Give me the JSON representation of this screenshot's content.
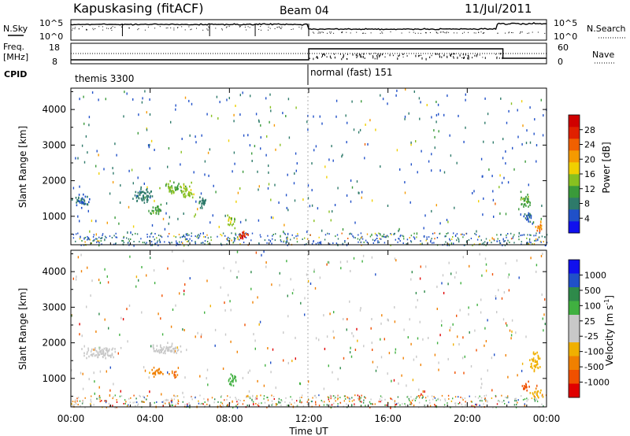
{
  "header": {
    "station": "Kapuskasing (fitACF)",
    "beam": "Beam 04",
    "date": "11/Jul/2011"
  },
  "noise_panel": {
    "left_label": "N.Sky",
    "right_label": "N.Search",
    "left_ticks": [
      "10^5",
      "10^0"
    ],
    "right_ticks": [
      "10^5",
      "10^0"
    ]
  },
  "freq_panel": {
    "left_label_1": "Freq.",
    "left_label_2": "[MHz]",
    "left_ticks": [
      "18",
      "8"
    ],
    "right_ticks": [
      "60",
      "0"
    ],
    "right_label": "Nave"
  },
  "cpid_panel": {
    "label": "CPID",
    "segments": [
      {
        "name": "themis 3300",
        "start_hour": 0,
        "end_hour": 12
      },
      {
        "name": "normal (fast) 151",
        "start_hour": 12,
        "end_hour": 24
      }
    ]
  },
  "chart_data": [
    {
      "type": "heatmap",
      "panel": "power",
      "ylabel": "Slant Range [km]",
      "y_ticks": [
        "1000",
        "2000",
        "3000",
        "4000"
      ],
      "ylim": [
        200,
        4600
      ],
      "colorbar_label": "Power [dB]",
      "colorbar_ticks": [
        "4",
        "8",
        "12",
        "16",
        "20",
        "24",
        "28"
      ],
      "colorbar_colors": [
        "#1010ee",
        "#2050c8",
        "#2e7a6a",
        "#3a9a3a",
        "#88c020",
        "#f0d000",
        "#f59a00",
        "#f06000",
        "#e02000",
        "#d00000"
      ],
      "regions": [
        {
          "t": 0.5,
          "r": 1450,
          "dt": 0.6,
          "dr": 250,
          "v": 6
        },
        {
          "t": 3.7,
          "r": 1650,
          "dt": 0.7,
          "dr": 300,
          "v": 7
        },
        {
          "t": 4.3,
          "r": 1200,
          "dt": 0.5,
          "dr": 200,
          "v": 11
        },
        {
          "t": 5.1,
          "r": 1800,
          "dt": 0.7,
          "dr": 250,
          "v": 12
        },
        {
          "t": 5.8,
          "r": 1700,
          "dt": 0.5,
          "dr": 300,
          "v": 14
        },
        {
          "t": 6.6,
          "r": 1400,
          "dt": 0.3,
          "dr": 300,
          "v": 8
        },
        {
          "t": 8.6,
          "r": 500,
          "dt": 0.4,
          "dr": 200,
          "v": 26
        },
        {
          "t": 8.1,
          "r": 900,
          "dt": 0.3,
          "dr": 250,
          "v": 14
        },
        {
          "t": 22.9,
          "r": 1500,
          "dt": 0.4,
          "dr": 300,
          "v": 11
        },
        {
          "t": 23.6,
          "r": 700,
          "dt": 0.3,
          "dr": 200,
          "v": 22
        },
        {
          "t": 23.0,
          "r": 1000,
          "dt": 0.4,
          "dr": 200,
          "v": 6
        }
      ]
    },
    {
      "type": "heatmap",
      "panel": "velocity",
      "ylabel": "Slant Range [km]",
      "y_ticks": [
        "1000",
        "2000",
        "3000",
        "4000"
      ],
      "ylim": [
        200,
        4600
      ],
      "xlabel": "Time UT",
      "x_ticks": [
        "00:00",
        "04:00",
        "08:00",
        "12:00",
        "16:00",
        "20:00",
        "00:00"
      ],
      "colorbar_label": "Velocity [m s^-1]",
      "colorbar_ticks": [
        "1000",
        "500",
        "100",
        "25",
        "-25",
        "-100",
        "-500",
        "-1000"
      ],
      "colorbar_colors": [
        "#1010ee",
        "#2050c8",
        "#2e8a4a",
        "#40b040",
        "#c8c8c8",
        "#c8c8c8",
        "#f0b000",
        "#f08000",
        "#f05000",
        "#e00000"
      ],
      "regions": [
        {
          "t": 1.5,
          "r": 1750,
          "dt": 1.2,
          "dr": 250,
          "v": 0
        },
        {
          "t": 4.8,
          "r": 1850,
          "dt": 1.2,
          "dr": 200,
          "v": 0
        },
        {
          "t": 4.3,
          "r": 1200,
          "dt": 0.5,
          "dr": 200,
          "v": -120
        },
        {
          "t": 5.2,
          "r": 1150,
          "dt": 0.3,
          "dr": 150,
          "v": -300
        },
        {
          "t": 8.1,
          "r": 1000,
          "dt": 0.3,
          "dr": 300,
          "v": 150
        },
        {
          "t": 23.4,
          "r": 1500,
          "dt": 0.4,
          "dr": 400,
          "v": -80
        },
        {
          "t": 23.5,
          "r": 600,
          "dt": 0.4,
          "dr": 200,
          "v": -90
        },
        {
          "t": 22.9,
          "r": 800,
          "dt": 0.3,
          "dr": 200,
          "v": -400
        }
      ]
    }
  ]
}
